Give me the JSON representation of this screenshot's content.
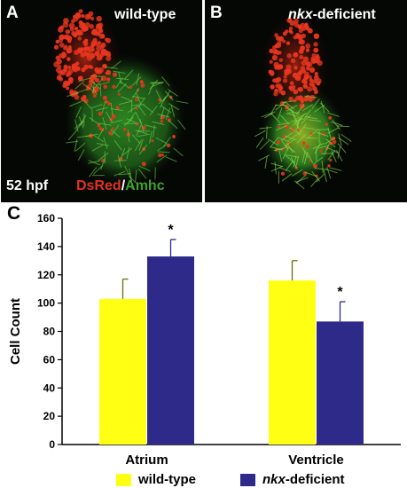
{
  "panel_a": {
    "label": "A",
    "title": "wild-type",
    "stage": "52 hpf",
    "stain_red": "DsRed",
    "stain_sep": "/",
    "stain_green": "Amhc"
  },
  "panel_b": {
    "label": "B",
    "title_italic": "nkx",
    "title_rest": "-deficient"
  },
  "panel_c": {
    "label": "C"
  },
  "colors": {
    "wild_type": "#ffff14",
    "nkx_deficient": "#2e2a8a",
    "dsred": "#e0321e",
    "amhc": "#3ea02c"
  },
  "chart_data": {
    "type": "bar",
    "categories": [
      "Atrium",
      "Ventricle"
    ],
    "ylabel": "Cell Count",
    "xlabel": "",
    "ylim": [
      0,
      160
    ],
    "yticks": [
      0,
      20,
      40,
      60,
      80,
      100,
      120,
      140,
      160
    ],
    "grid": false,
    "series": [
      {
        "name": "wild-type",
        "values": [
          103,
          116
        ],
        "errors": [
          14,
          14
        ],
        "color": "#ffff14"
      },
      {
        "name": "nkx-deficient",
        "values": [
          133,
          87
        ],
        "errors": [
          12,
          14
        ],
        "color": "#2e2a8a"
      }
    ],
    "significance": [
      "*",
      "*"
    ],
    "legend": {
      "placement": "bottom",
      "entries": [
        {
          "label": "wild-type"
        },
        {
          "italic": "nkx",
          "rest": "-deficient"
        }
      ]
    }
  }
}
